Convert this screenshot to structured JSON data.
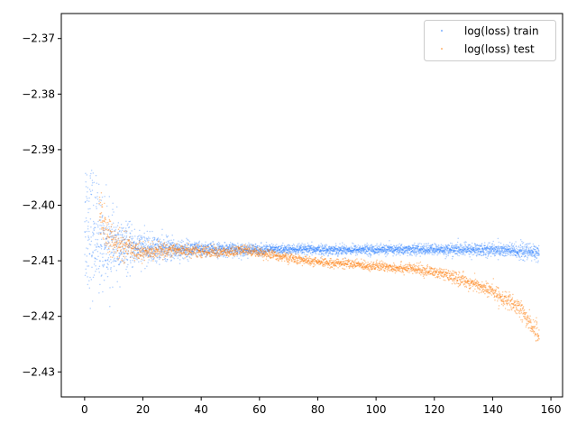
{
  "chart_data": {
    "type": "scatter",
    "title": "",
    "xlabel": "",
    "ylabel": "",
    "xlim": [
      -8,
      164
    ],
    "ylim": [
      -2.4345,
      -2.3655
    ],
    "xticks": [
      0,
      20,
      40,
      60,
      80,
      100,
      120,
      140,
      160
    ],
    "yticks": [
      -2.37,
      -2.38,
      -2.39,
      -2.4,
      -2.41,
      -2.42,
      -2.43
    ],
    "ytick_labels": [
      "−2.37",
      "−2.38",
      "−2.39",
      "−2.40",
      "−2.41",
      "−2.42",
      "−2.43"
    ],
    "legend_position": "top-right",
    "series": [
      {
        "name": "log(loss) train",
        "color": "#1f77ff",
        "trend_x": [
          0,
          2,
          5,
          10,
          20,
          30,
          40,
          60,
          80,
          100,
          120,
          140,
          156
        ],
        "trend_y": [
          -2.402,
          -2.404,
          -2.406,
          -2.4075,
          -2.4078,
          -2.4079,
          -2.408,
          -2.408,
          -2.408,
          -2.408,
          -2.408,
          -2.408,
          -2.4085
        ],
        "spread_x": [
          0,
          2,
          5,
          10,
          20,
          30,
          40,
          60,
          80,
          100,
          120,
          140,
          156
        ],
        "spread_y": [
          0.012,
          0.011,
          0.008,
          0.005,
          0.0025,
          0.0018,
          0.0012,
          0.0009,
          0.0008,
          0.0008,
          0.0009,
          0.0011,
          0.0014
        ]
      },
      {
        "name": "log(loss) test",
        "color": "#ff7f0e",
        "trend_x": [
          5,
          10,
          15,
          20,
          30,
          40,
          50,
          55,
          60,
          65,
          70,
          80,
          90,
          100,
          110,
          120,
          130,
          140,
          150,
          156
        ],
        "trend_y": [
          -2.4025,
          -2.407,
          -2.4075,
          -2.4085,
          -2.408,
          -2.4083,
          -2.4085,
          -2.408,
          -2.4085,
          -2.409,
          -2.4095,
          -2.4103,
          -2.4105,
          -2.411,
          -2.4113,
          -2.412,
          -2.4135,
          -2.4155,
          -2.419,
          -2.4235
        ],
        "spread_x": [
          5,
          10,
          20,
          40,
          60,
          80,
          100,
          120,
          140,
          156
        ],
        "spread_y": [
          0.004,
          0.0025,
          0.0013,
          0.0009,
          0.0008,
          0.0007,
          0.0008,
          0.0009,
          0.0012,
          0.0018
        ]
      }
    ]
  }
}
